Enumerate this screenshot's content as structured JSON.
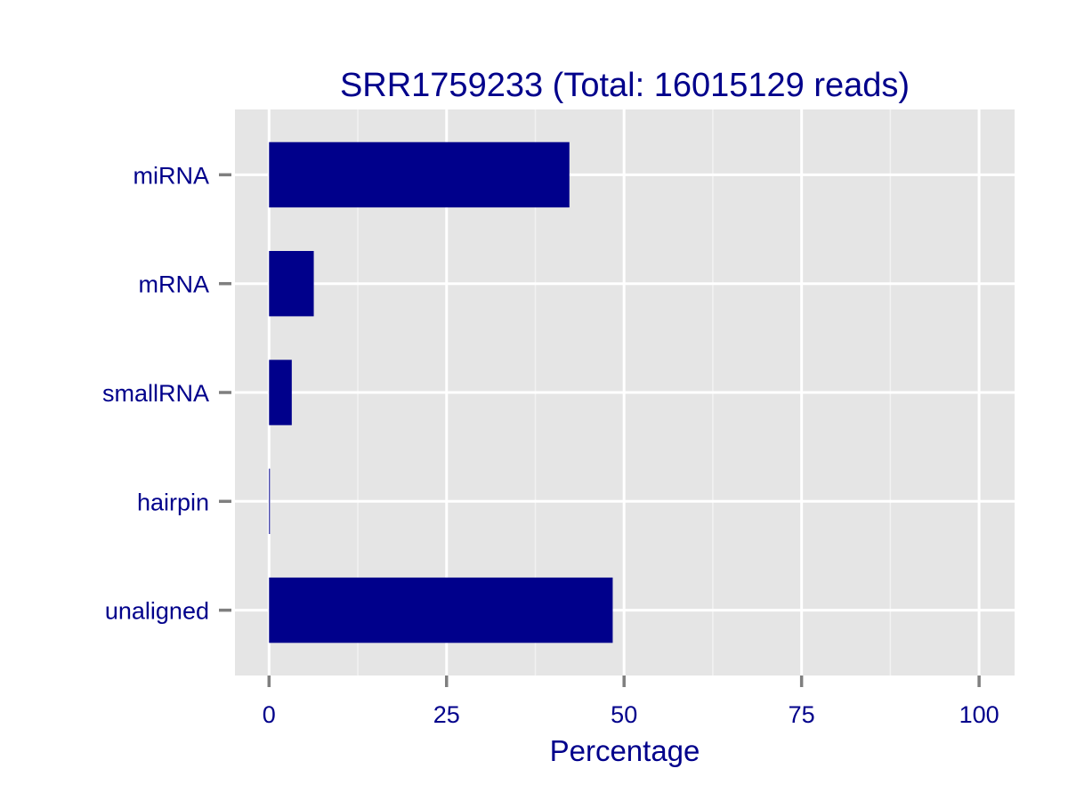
{
  "colors": {
    "bar": "#00008b",
    "text": "#00008b",
    "panel": "#e5e5e5",
    "grid_major": "#ffffff",
    "grid_minor": "#f2f2f2",
    "tick_mark": "#7f7f7f"
  },
  "chart_data": {
    "type": "bar",
    "orientation": "horizontal",
    "title": "SRR1759233 (Total: 16015129 reads)",
    "xlabel": "Percentage",
    "ylabel": "",
    "categories": [
      "miRNA",
      "mRNA",
      "smallRNA",
      "hairpin",
      "unaligned"
    ],
    "values": [
      42.3,
      6.3,
      3.2,
      0.1,
      48.4
    ],
    "xlim": [
      -4.8,
      105
    ],
    "x_ticks": [
      0,
      25,
      50,
      75,
      100
    ],
    "grid": true,
    "legend": "none"
  }
}
